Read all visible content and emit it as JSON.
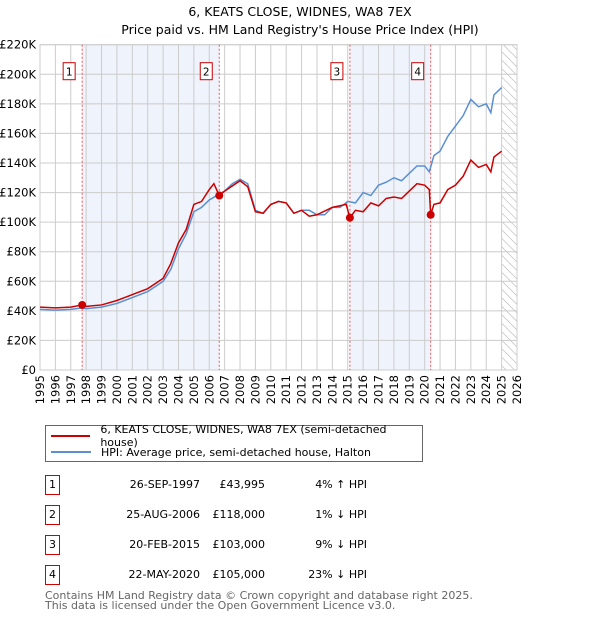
{
  "chart_data": {
    "type": "line",
    "title": "6, KEATS CLOSE, WIDNES, WA8 7EX",
    "subtitle": "Price paid vs. HM Land Registry's House Price Index (HPI)",
    "xlim": [
      1995,
      2026
    ],
    "ylim": [
      0,
      220000
    ],
    "x_ticks": [
      "1995",
      "1996",
      "1997",
      "1998",
      "1999",
      "2000",
      "2001",
      "2002",
      "2003",
      "2004",
      "2005",
      "2006",
      "2007",
      "2008",
      "2009",
      "2010",
      "2011",
      "2012",
      "2013",
      "2014",
      "2015",
      "2016",
      "2017",
      "2018",
      "2019",
      "2020",
      "2021",
      "2022",
      "2023",
      "2024",
      "2025",
      "2026"
    ],
    "y_ticks": [
      {
        "v": 0,
        "l": "£0"
      },
      {
        "v": 20000,
        "l": "£20K"
      },
      {
        "v": 40000,
        "l": "£40K"
      },
      {
        "v": 60000,
        "l": "£60K"
      },
      {
        "v": 80000,
        "l": "£80K"
      },
      {
        "v": 100000,
        "l": "£100K"
      },
      {
        "v": 120000,
        "l": "£120K"
      },
      {
        "v": 140000,
        "l": "£140K"
      },
      {
        "v": 160000,
        "l": "£160K"
      },
      {
        "v": 180000,
        "l": "£180K"
      },
      {
        "v": 200000,
        "l": "£200K"
      },
      {
        "v": 220000,
        "l": "£220K"
      }
    ],
    "grid": true,
    "forecast_from": 2025.0,
    "shaded_ranges": [
      [
        1997.74,
        2006.65
      ],
      [
        2015.14,
        2020.39
      ]
    ],
    "series": [
      {
        "name": "6, KEATS CLOSE, WIDNES, WA8 7EX (semi-detached house)",
        "color": "#cc0000",
        "x": [
          1995,
          1996,
          1997,
          1997.74,
          1998,
          1999,
          2000,
          2001,
          2002,
          2003,
          2003.5,
          2004,
          2004.5,
          2005,
          2005.5,
          2006,
          2006.3,
          2006.65,
          2007,
          2008,
          2008.5,
          2009,
          2009.5,
          2010,
          2010.5,
          2011,
          2011.5,
          2012,
          2012.5,
          2013,
          2014,
          2014.9,
          2015.14,
          2015.5,
          2016,
          2016.5,
          2017,
          2017.5,
          2018,
          2018.5,
          2019,
          2019.5,
          2020,
          2020.3,
          2020.39,
          2020.6,
          2021,
          2021.5,
          2022,
          2022.5,
          2023,
          2023.5,
          2024,
          2024.3,
          2024.5,
          2025
        ],
        "y": [
          42500,
          42000,
          42500,
          43995,
          43000,
          44000,
          47000,
          51000,
          55000,
          62000,
          72000,
          86000,
          95000,
          112000,
          114000,
          122000,
          126000,
          118000,
          121000,
          128000,
          124000,
          107000,
          106000,
          112000,
          114000,
          113000,
          106000,
          108000,
          104000,
          105000,
          110000,
          112000,
          103000,
          108000,
          107000,
          113000,
          111000,
          116000,
          117000,
          116000,
          121000,
          126000,
          125000,
          122000,
          105000,
          112000,
          113000,
          122000,
          125000,
          131000,
          142000,
          137000,
          139000,
          134000,
          144000,
          148000
        ]
      },
      {
        "name": "HPI: Average price, semi-detached house, Halton",
        "color": "#5b8fd4",
        "x": [
          1995,
          1996,
          1997,
          1997.74,
          1998,
          1999,
          2000,
          2001,
          2002,
          2003,
          2003.5,
          2004,
          2004.5,
          2005,
          2005.5,
          2006,
          2006.65,
          2007,
          2007.5,
          2008,
          2008.5,
          2009,
          2009.5,
          2010,
          2010.5,
          2011,
          2011.5,
          2012,
          2012.5,
          2013,
          2013.5,
          2014,
          2014.5,
          2015,
          2015.5,
          2016,
          2016.5,
          2017,
          2017.5,
          2018,
          2018.5,
          2019,
          2019.5,
          2020,
          2020.3,
          2020.6,
          2021,
          2021.5,
          2022,
          2022.5,
          2023,
          2023.5,
          2024,
          2024.3,
          2024.5,
          2025
        ],
        "y": [
          41000,
          40500,
          41000,
          42000,
          41500,
          42500,
          45000,
          49000,
          53000,
          60000,
          68000,
          82000,
          92000,
          107000,
          110000,
          115000,
          119000,
          121000,
          126000,
          129000,
          126000,
          108000,
          106000,
          112000,
          114000,
          113000,
          106000,
          108000,
          108000,
          105000,
          105000,
          110000,
          110000,
          114000,
          113000,
          120000,
          118000,
          125000,
          127000,
          130000,
          128000,
          133000,
          138000,
          138000,
          134000,
          145000,
          148000,
          158000,
          165000,
          172000,
          183000,
          178000,
          180000,
          174000,
          186000,
          191000
        ]
      }
    ],
    "sales": [
      {
        "n": "1",
        "x": 1997.74,
        "y": 43995
      },
      {
        "n": "2",
        "x": 2006.65,
        "y": 118000
      },
      {
        "n": "3",
        "x": 2015.14,
        "y": 103000
      },
      {
        "n": "4",
        "x": 2020.39,
        "y": 105000
      }
    ]
  },
  "legend": {
    "red": "6, KEATS CLOSE, WIDNES, WA8 7EX (semi-detached house)",
    "blue": "HPI: Average price, semi-detached house, Halton"
  },
  "transactions": [
    {
      "n": "1",
      "date": "26-SEP-1997",
      "price": "£43,995",
      "hpi": "4% ↑ HPI"
    },
    {
      "n": "2",
      "date": "25-AUG-2006",
      "price": "£118,000",
      "hpi": "1% ↓ HPI"
    },
    {
      "n": "3",
      "date": "20-FEB-2015",
      "price": "£103,000",
      "hpi": "9% ↓ HPI"
    },
    {
      "n": "4",
      "date": "22-MAY-2020",
      "price": "£105,000",
      "hpi": "23% ↓ HPI"
    }
  ],
  "footer": {
    "line1": "Contains HM Land Registry data © Crown copyright and database right 2025.",
    "line2": "This data is licensed under the Open Government Licence v3.0."
  }
}
